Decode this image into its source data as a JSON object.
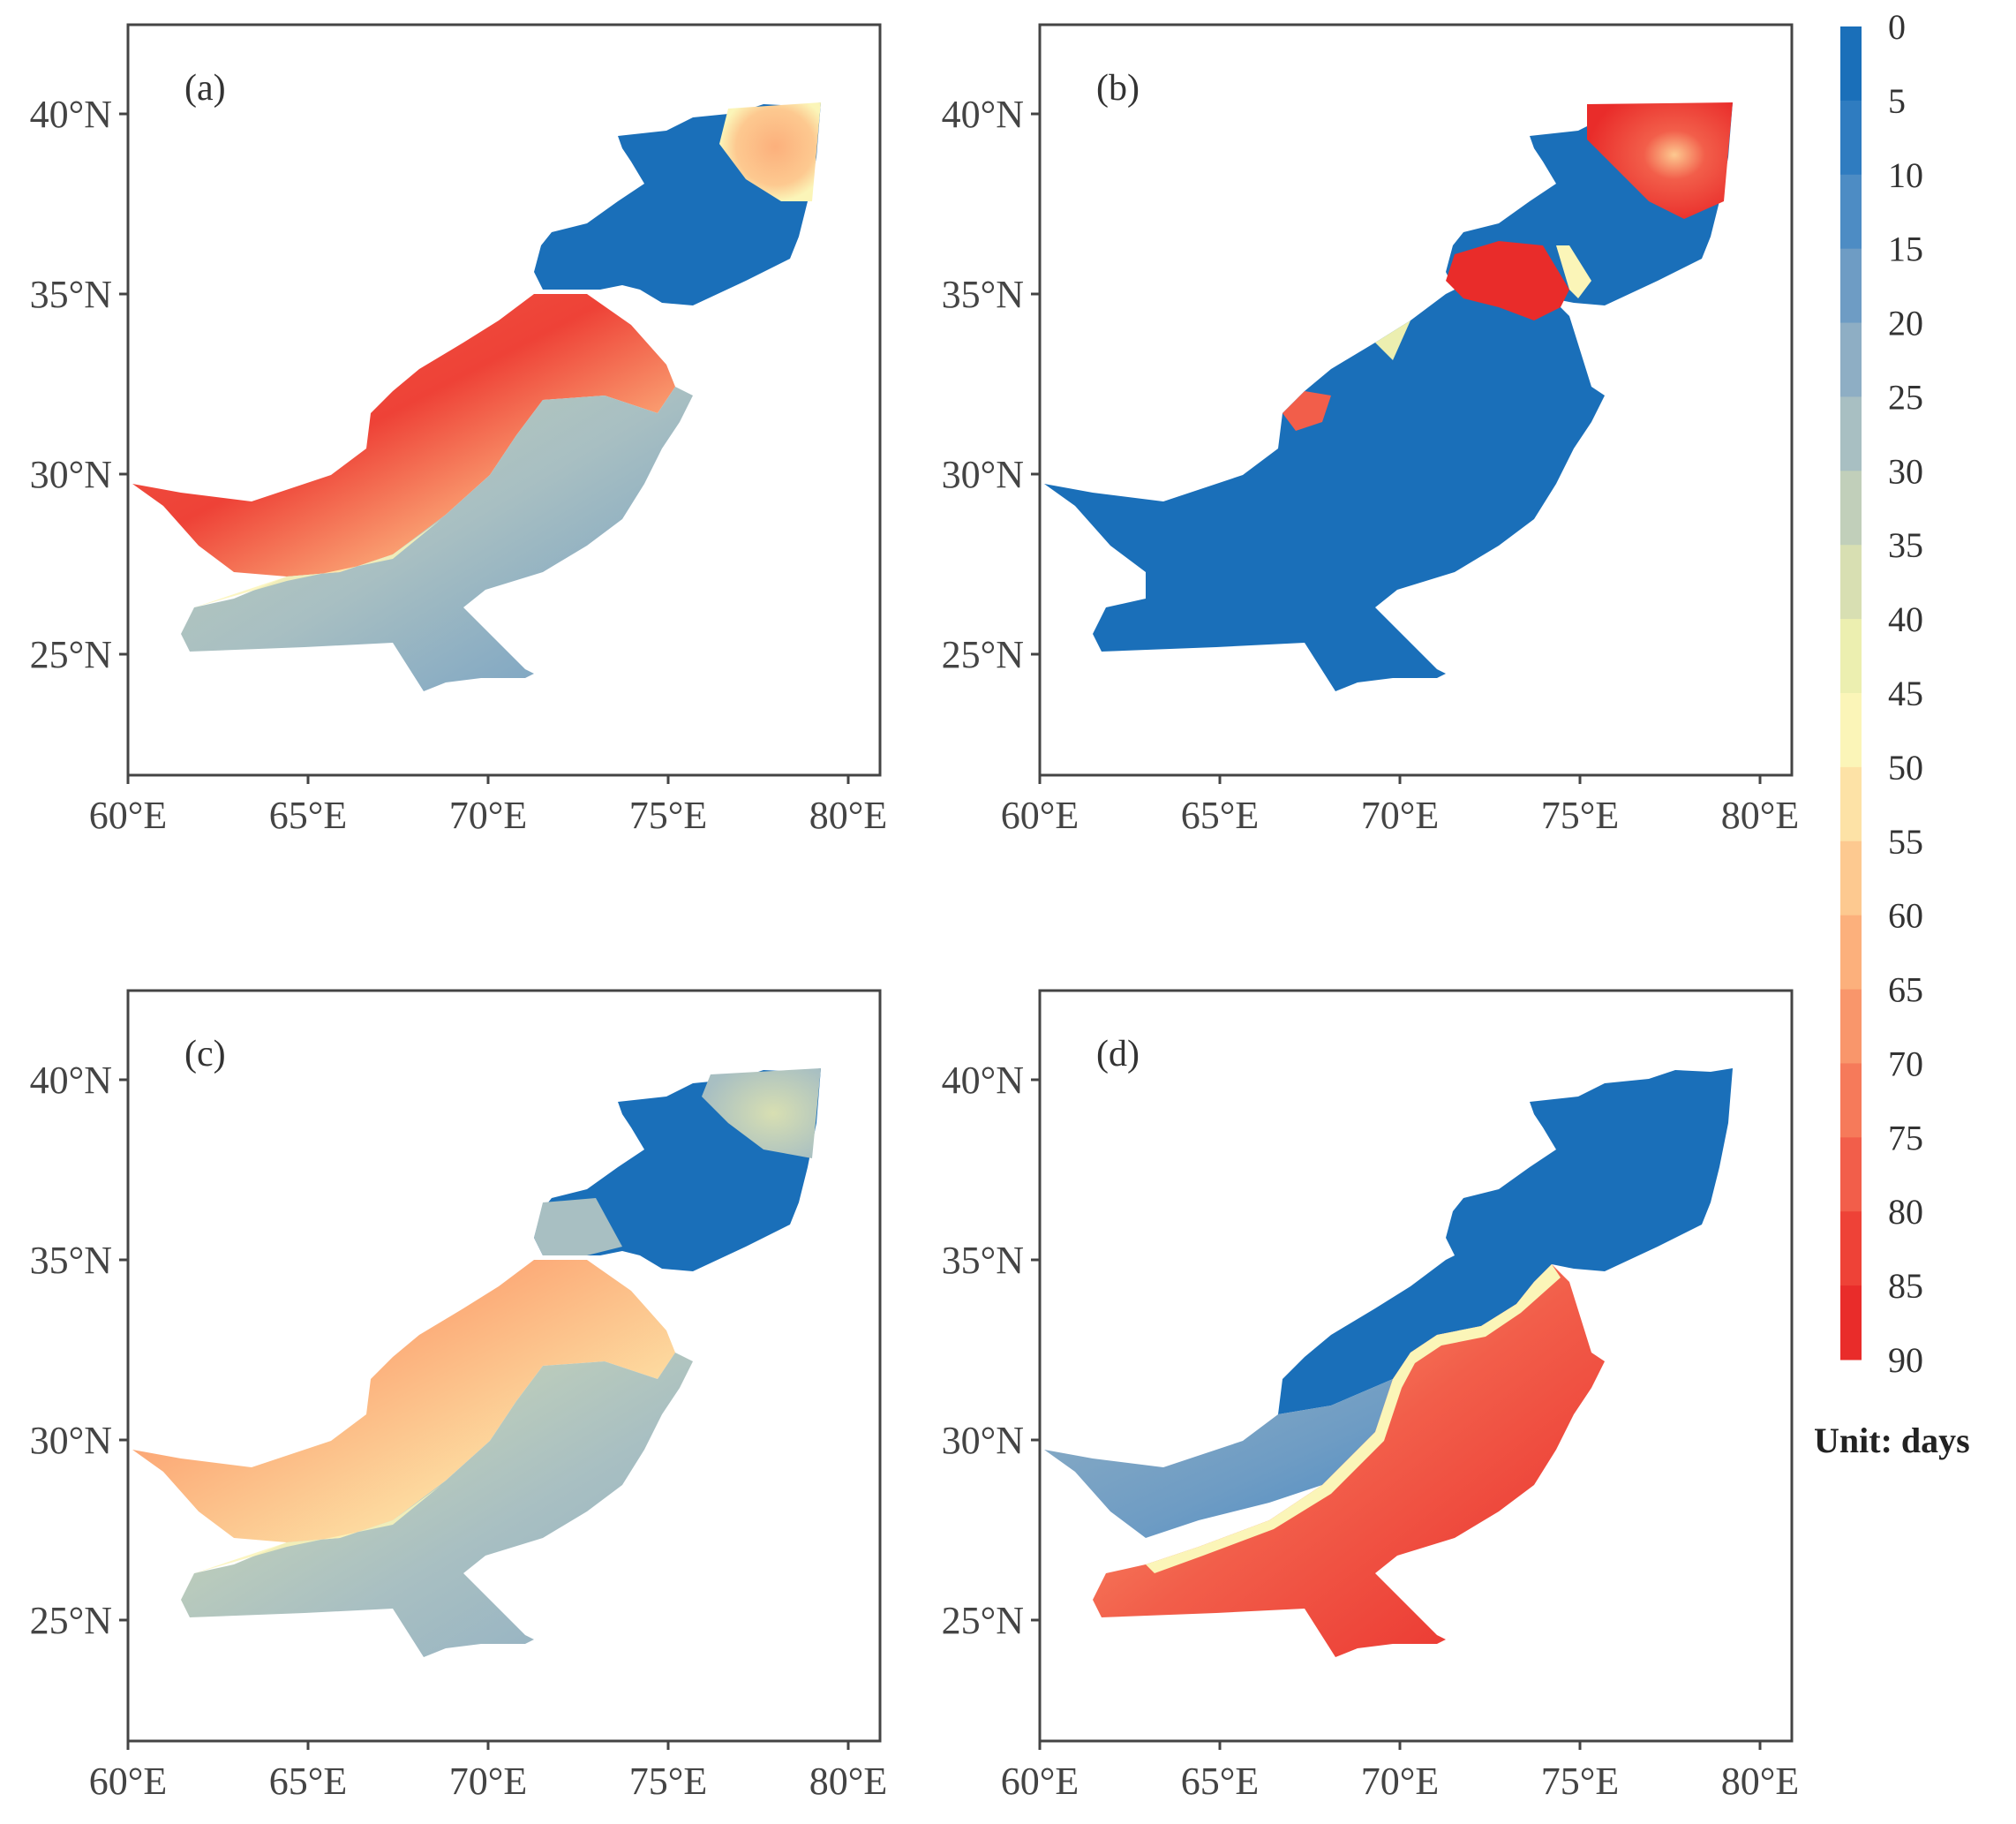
{
  "figure": {
    "unit_label": "Unit: days",
    "x_ticks": [
      "60°E",
      "65°E",
      "70°E",
      "75°E",
      "80°E"
    ],
    "y_ticks": [
      "40°N",
      "35°N",
      "30°N",
      "25°N"
    ],
    "panels": [
      {
        "label": "(a)",
        "pattern": "a"
      },
      {
        "label": "(b)",
        "pattern": "b"
      },
      {
        "label": "(c)",
        "pattern": "c"
      },
      {
        "label": "(d)",
        "pattern": "d"
      }
    ],
    "colorbar": {
      "ticks": [
        "0",
        "5",
        "10",
        "15",
        "20",
        "25",
        "30",
        "35",
        "40",
        "45",
        "50",
        "55",
        "60",
        "65",
        "70",
        "75",
        "80",
        "85",
        "90"
      ],
      "colors": [
        "#1a6fb9",
        "#2f7cc0",
        "#4d8cc4",
        "#6e9cc4",
        "#8eaec4",
        "#a8bfc2",
        "#c1cfba",
        "#d8dfb2",
        "#ecefb0",
        "#fbf5b8",
        "#fde2a6",
        "#fdc990",
        "#fcb07c",
        "#f9966b",
        "#f67a5a",
        "#f25e4a",
        "#ee4237",
        "#e92c2a"
      ]
    }
  }
}
